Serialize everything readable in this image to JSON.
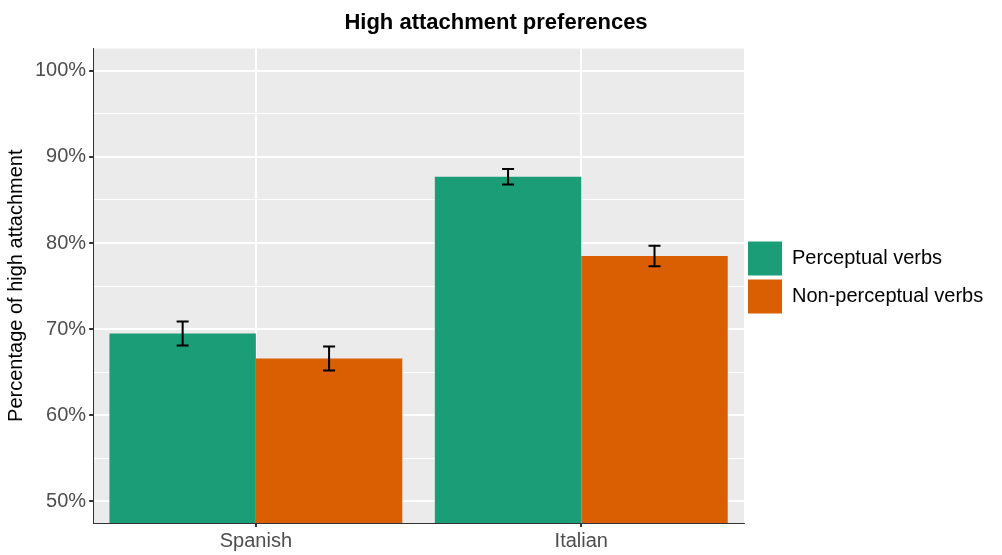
{
  "chart_data": {
    "type": "bar",
    "title": "High attachment preferences",
    "ylabel": "Percentage of high attachment",
    "categories": [
      "Spanish",
      "Italian"
    ],
    "series": [
      {
        "name": "Perceptual verbs",
        "color": "#1b9e77",
        "values": [
          69.5,
          87.7
        ],
        "errors": [
          1.4,
          0.9
        ]
      },
      {
        "name": "Non-perceptual verbs",
        "color": "#d95f02",
        "values": [
          66.6,
          78.5
        ],
        "errors": [
          1.4,
          1.2
        ]
      }
    ],
    "ylim": [
      47.5,
      102.6
    ],
    "yticks": [
      {
        "value": 50,
        "label": "50%"
      },
      {
        "value": 55,
        "label": null
      },
      {
        "value": 60,
        "label": "60%"
      },
      {
        "value": 65,
        "label": null
      },
      {
        "value": 70,
        "label": "70%"
      },
      {
        "value": 75,
        "label": null
      },
      {
        "value": 80,
        "label": "80%"
      },
      {
        "value": 85,
        "label": null
      },
      {
        "value": 90,
        "label": "90%"
      },
      {
        "value": 95,
        "label": null
      },
      {
        "value": 100,
        "label": "100%"
      }
    ],
    "grid": true,
    "legend": "right"
  }
}
